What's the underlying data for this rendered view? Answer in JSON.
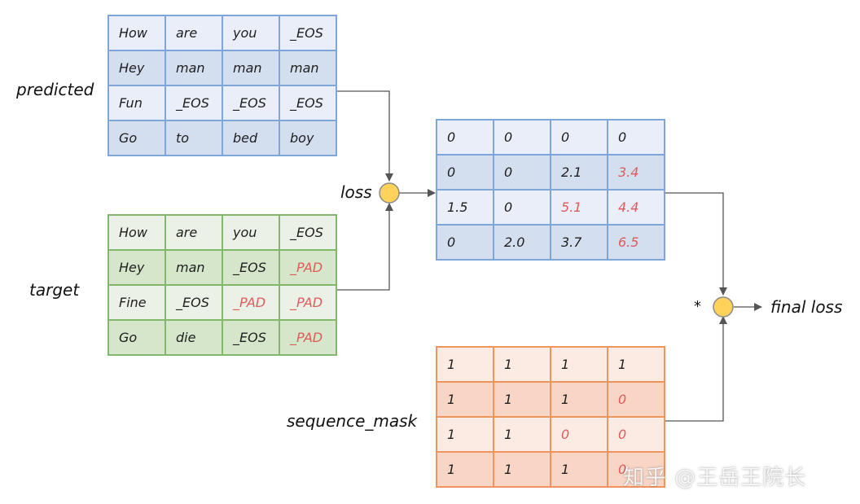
{
  "labels": {
    "predicted": "predicted",
    "target": "target",
    "loss": "loss",
    "sequence_mask": "sequence_mask",
    "multiply": "*",
    "final_loss": "final loss"
  },
  "predicted": [
    [
      "How",
      "are",
      "you",
      "_EOS"
    ],
    [
      "Hey",
      "man",
      "man",
      "man"
    ],
    [
      "Fun",
      "_EOS",
      "_EOS",
      "_EOS"
    ],
    [
      "Go",
      "to",
      "bed",
      "boy"
    ]
  ],
  "target": [
    [
      "How",
      "are",
      "you",
      "_EOS"
    ],
    [
      "Hey",
      "man",
      "_EOS",
      "_PAD"
    ],
    [
      "Fine",
      "_EOS",
      "_PAD",
      "_PAD"
    ],
    [
      "Go",
      "die",
      "_EOS",
      "_PAD"
    ]
  ],
  "loss_matrix": [
    [
      "0",
      "0",
      "0",
      "0"
    ],
    [
      "0",
      "0",
      "2.1",
      "3.4"
    ],
    [
      "1.5",
      "0",
      "5.1",
      "4.4"
    ],
    [
      "0",
      "2.0",
      "3.7",
      "6.5"
    ]
  ],
  "sequence_mask": [
    [
      "1",
      "1",
      "1",
      "1"
    ],
    [
      "1",
      "1",
      "1",
      "0"
    ],
    [
      "1",
      "1",
      "0",
      "0"
    ],
    [
      "1",
      "1",
      "1",
      "0"
    ]
  ],
  "watermark": "知乎 @王岳王院长",
  "colors": {
    "highlight": "#e05a5a",
    "blue_border": "#7ea6d8",
    "green_border": "#82b86b",
    "orange_border": "#ee955d",
    "operator_fill": "#ffd25a"
  }
}
